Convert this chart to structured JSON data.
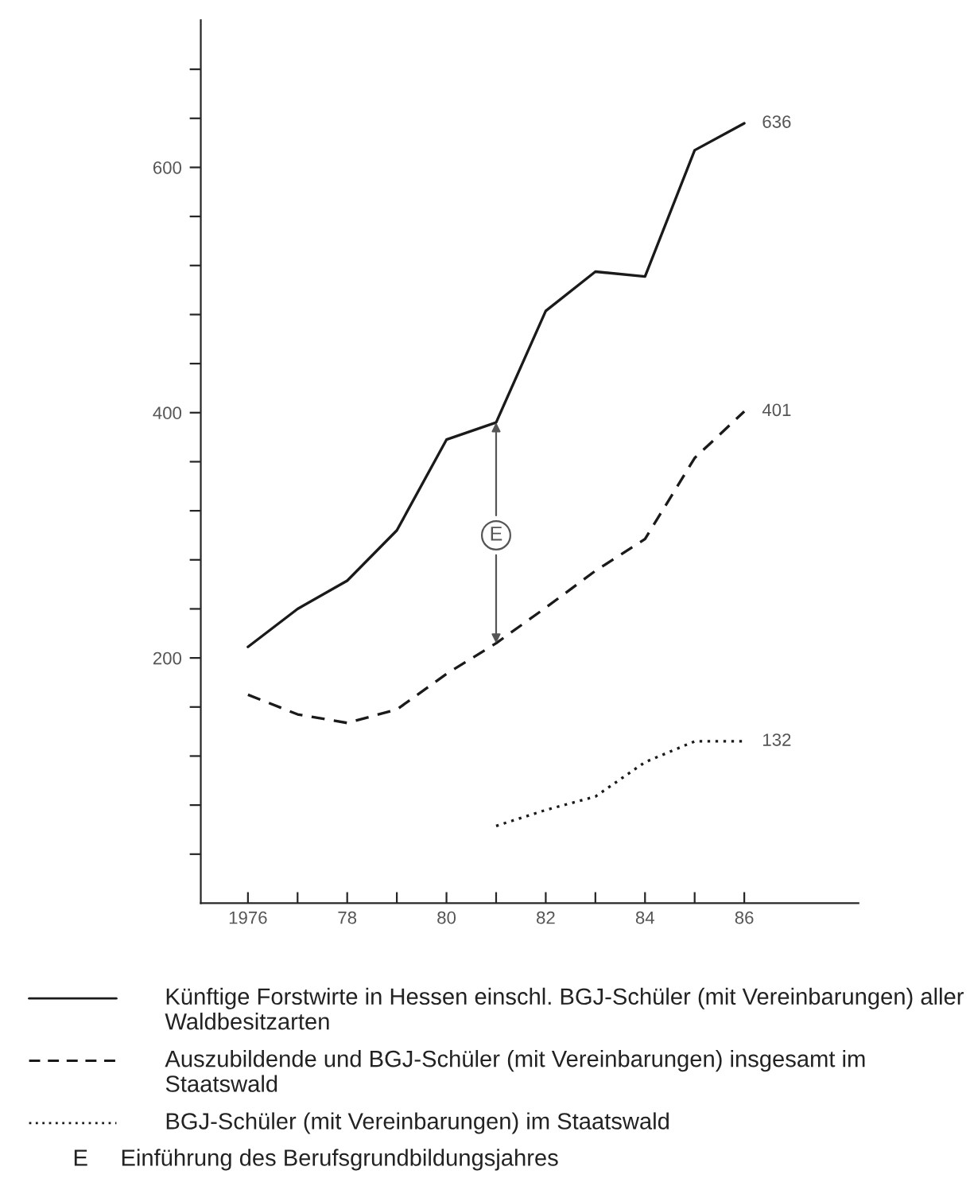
{
  "chart_data": {
    "type": "line",
    "x": [
      1976,
      1977,
      1978,
      1979,
      1980,
      1981,
      1982,
      1983,
      1984,
      1985,
      1986
    ],
    "series": [
      {
        "name": "Künftige Forstwirte in Hessen einschl. BGJ-Schüler (mit Vereinbarungen) aller Waldbesitzarten",
        "color": "#1a1a1a",
        "line_style": "solid",
        "values": [
          209,
          240,
          263,
          304,
          378,
          392,
          483,
          515,
          511,
          614,
          636
        ],
        "value_labels": [
          null,
          null,
          null,
          null,
          null,
          null,
          null,
          null,
          null,
          null,
          "636"
        ]
      },
      {
        "name": "Auszubildende und BGJ-Schüler (mit Vereinbarungen) insgesamt im Staatswald",
        "color": "#1a1a1a",
        "line_style": "dashed",
        "values": [
          170,
          154,
          147,
          158,
          187,
          212,
          241,
          271,
          297,
          363,
          401
        ],
        "value_labels": [
          null,
          null,
          null,
          null,
          null,
          null,
          null,
          null,
          null,
          null,
          "401"
        ]
      },
      {
        "name": "BGJ-Schüler (mit Vereinbarungen) im Staatswald",
        "color": "#1a1a1a",
        "line_style": "dotted",
        "values": [
          null,
          null,
          null,
          null,
          null,
          63,
          76,
          87,
          115,
          132,
          132
        ],
        "value_labels": [
          null,
          null,
          null,
          null,
          null,
          null,
          null,
          null,
          null,
          null,
          "132"
        ]
      }
    ],
    "xlim": [
      1975.05,
      1988.3
    ],
    "xticks": [
      1976,
      {
        "value": 1977,
        "label": null
      },
      {
        "value": 1978,
        "label": "78"
      },
      {
        "value": 1979,
        "label": null
      },
      {
        "value": 1980,
        "label": "80"
      },
      {
        "value": 1981,
        "label": null
      },
      {
        "value": 1982,
        "label": "82"
      },
      {
        "value": 1983,
        "label": null
      },
      {
        "value": 1984,
        "label": "84"
      },
      {
        "value": 1985,
        "label": null
      },
      {
        "value": 1986,
        "label": "86"
      }
    ],
    "ylim": [
      0,
      720
    ],
    "yticks": [
      {
        "value": 40,
        "label": null
      },
      {
        "value": 80,
        "label": null
      },
      {
        "value": 120,
        "label": null
      },
      {
        "value": 160,
        "label": null
      },
      200,
      {
        "value": 240,
        "label": null
      },
      {
        "value": 280,
        "label": null
      },
      {
        "value": 320,
        "label": null
      },
      {
        "value": 360,
        "label": null
      },
      400,
      {
        "value": 440,
        "label": null
      },
      {
        "value": 480,
        "label": null
      },
      {
        "value": 520,
        "label": null
      },
      {
        "value": 560,
        "label": null
      },
      600,
      {
        "value": 640,
        "label": null
      },
      {
        "value": 680,
        "label": null
      }
    ],
    "annotations": [
      {
        "text": "E",
        "x": 1981,
        "y": 300
      },
      "E     Einführung des Berufsgrundbildungsjahres"
    ],
    "legend": "bottom",
    "grid": false
  }
}
